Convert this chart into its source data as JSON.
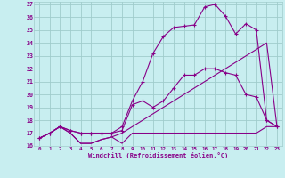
{
  "background_color": "#c8eef0",
  "grid_color": "#a0cccc",
  "line_color": "#880088",
  "xlabel": "Windchill (Refroidissement éolien,°C)",
  "xlim": [
    -0.5,
    23.5
  ],
  "ylim": [
    16.0,
    27.2
  ],
  "yticks": [
    16,
    17,
    18,
    19,
    20,
    21,
    22,
    23,
    24,
    25,
    26,
    27
  ],
  "xticks": [
    0,
    1,
    2,
    3,
    4,
    5,
    6,
    7,
    8,
    9,
    10,
    11,
    12,
    13,
    14,
    15,
    16,
    17,
    18,
    19,
    20,
    21,
    22,
    23
  ],
  "line1_x": [
    0,
    1,
    2,
    3,
    4,
    5,
    6,
    7,
    8,
    9,
    10,
    11,
    12,
    13,
    14,
    15,
    16,
    17,
    18,
    19,
    20,
    21,
    22,
    23
  ],
  "line1_y": [
    16.6,
    17.0,
    17.5,
    17.0,
    16.2,
    16.2,
    16.5,
    16.7,
    16.2,
    17.0,
    17.0,
    17.0,
    17.0,
    17.0,
    17.0,
    17.0,
    17.0,
    17.0,
    17.0,
    17.0,
    17.0,
    17.0,
    17.5,
    17.5
  ],
  "line2_x": [
    0,
    1,
    2,
    3,
    4,
    5,
    6,
    7,
    8,
    9,
    10,
    11,
    12,
    13,
    14,
    15,
    16,
    17,
    18,
    19,
    20,
    21,
    22,
    23
  ],
  "line2_y": [
    16.6,
    17.0,
    17.5,
    17.0,
    16.2,
    16.2,
    16.5,
    16.7,
    17.0,
    17.5,
    18.0,
    18.5,
    19.0,
    19.5,
    20.0,
    20.5,
    21.0,
    21.5,
    22.0,
    22.5,
    23.0,
    23.5,
    24.0,
    17.5
  ],
  "line3_x": [
    0,
    1,
    2,
    3,
    4,
    5,
    6,
    7,
    8,
    9,
    10,
    11,
    12,
    13,
    14,
    15,
    16,
    17,
    18,
    19,
    20,
    21,
    22,
    23
  ],
  "line3_y": [
    16.6,
    17.0,
    17.5,
    17.2,
    17.0,
    17.0,
    17.0,
    17.0,
    17.2,
    19.2,
    19.5,
    19.0,
    19.5,
    20.5,
    21.5,
    21.5,
    22.0,
    22.0,
    21.7,
    21.5,
    20.0,
    19.8,
    18.0,
    17.5
  ],
  "line4_x": [
    0,
    1,
    2,
    3,
    4,
    5,
    6,
    7,
    8,
    9,
    10,
    11,
    12,
    13,
    14,
    15,
    16,
    17,
    18,
    19,
    20,
    21,
    22,
    23
  ],
  "line4_y": [
    16.6,
    17.0,
    17.5,
    17.2,
    17.0,
    17.0,
    17.0,
    17.0,
    17.5,
    19.5,
    21.0,
    23.2,
    24.5,
    25.2,
    25.3,
    25.4,
    26.8,
    27.0,
    26.1,
    24.7,
    25.5,
    25.0,
    18.0,
    17.5
  ]
}
